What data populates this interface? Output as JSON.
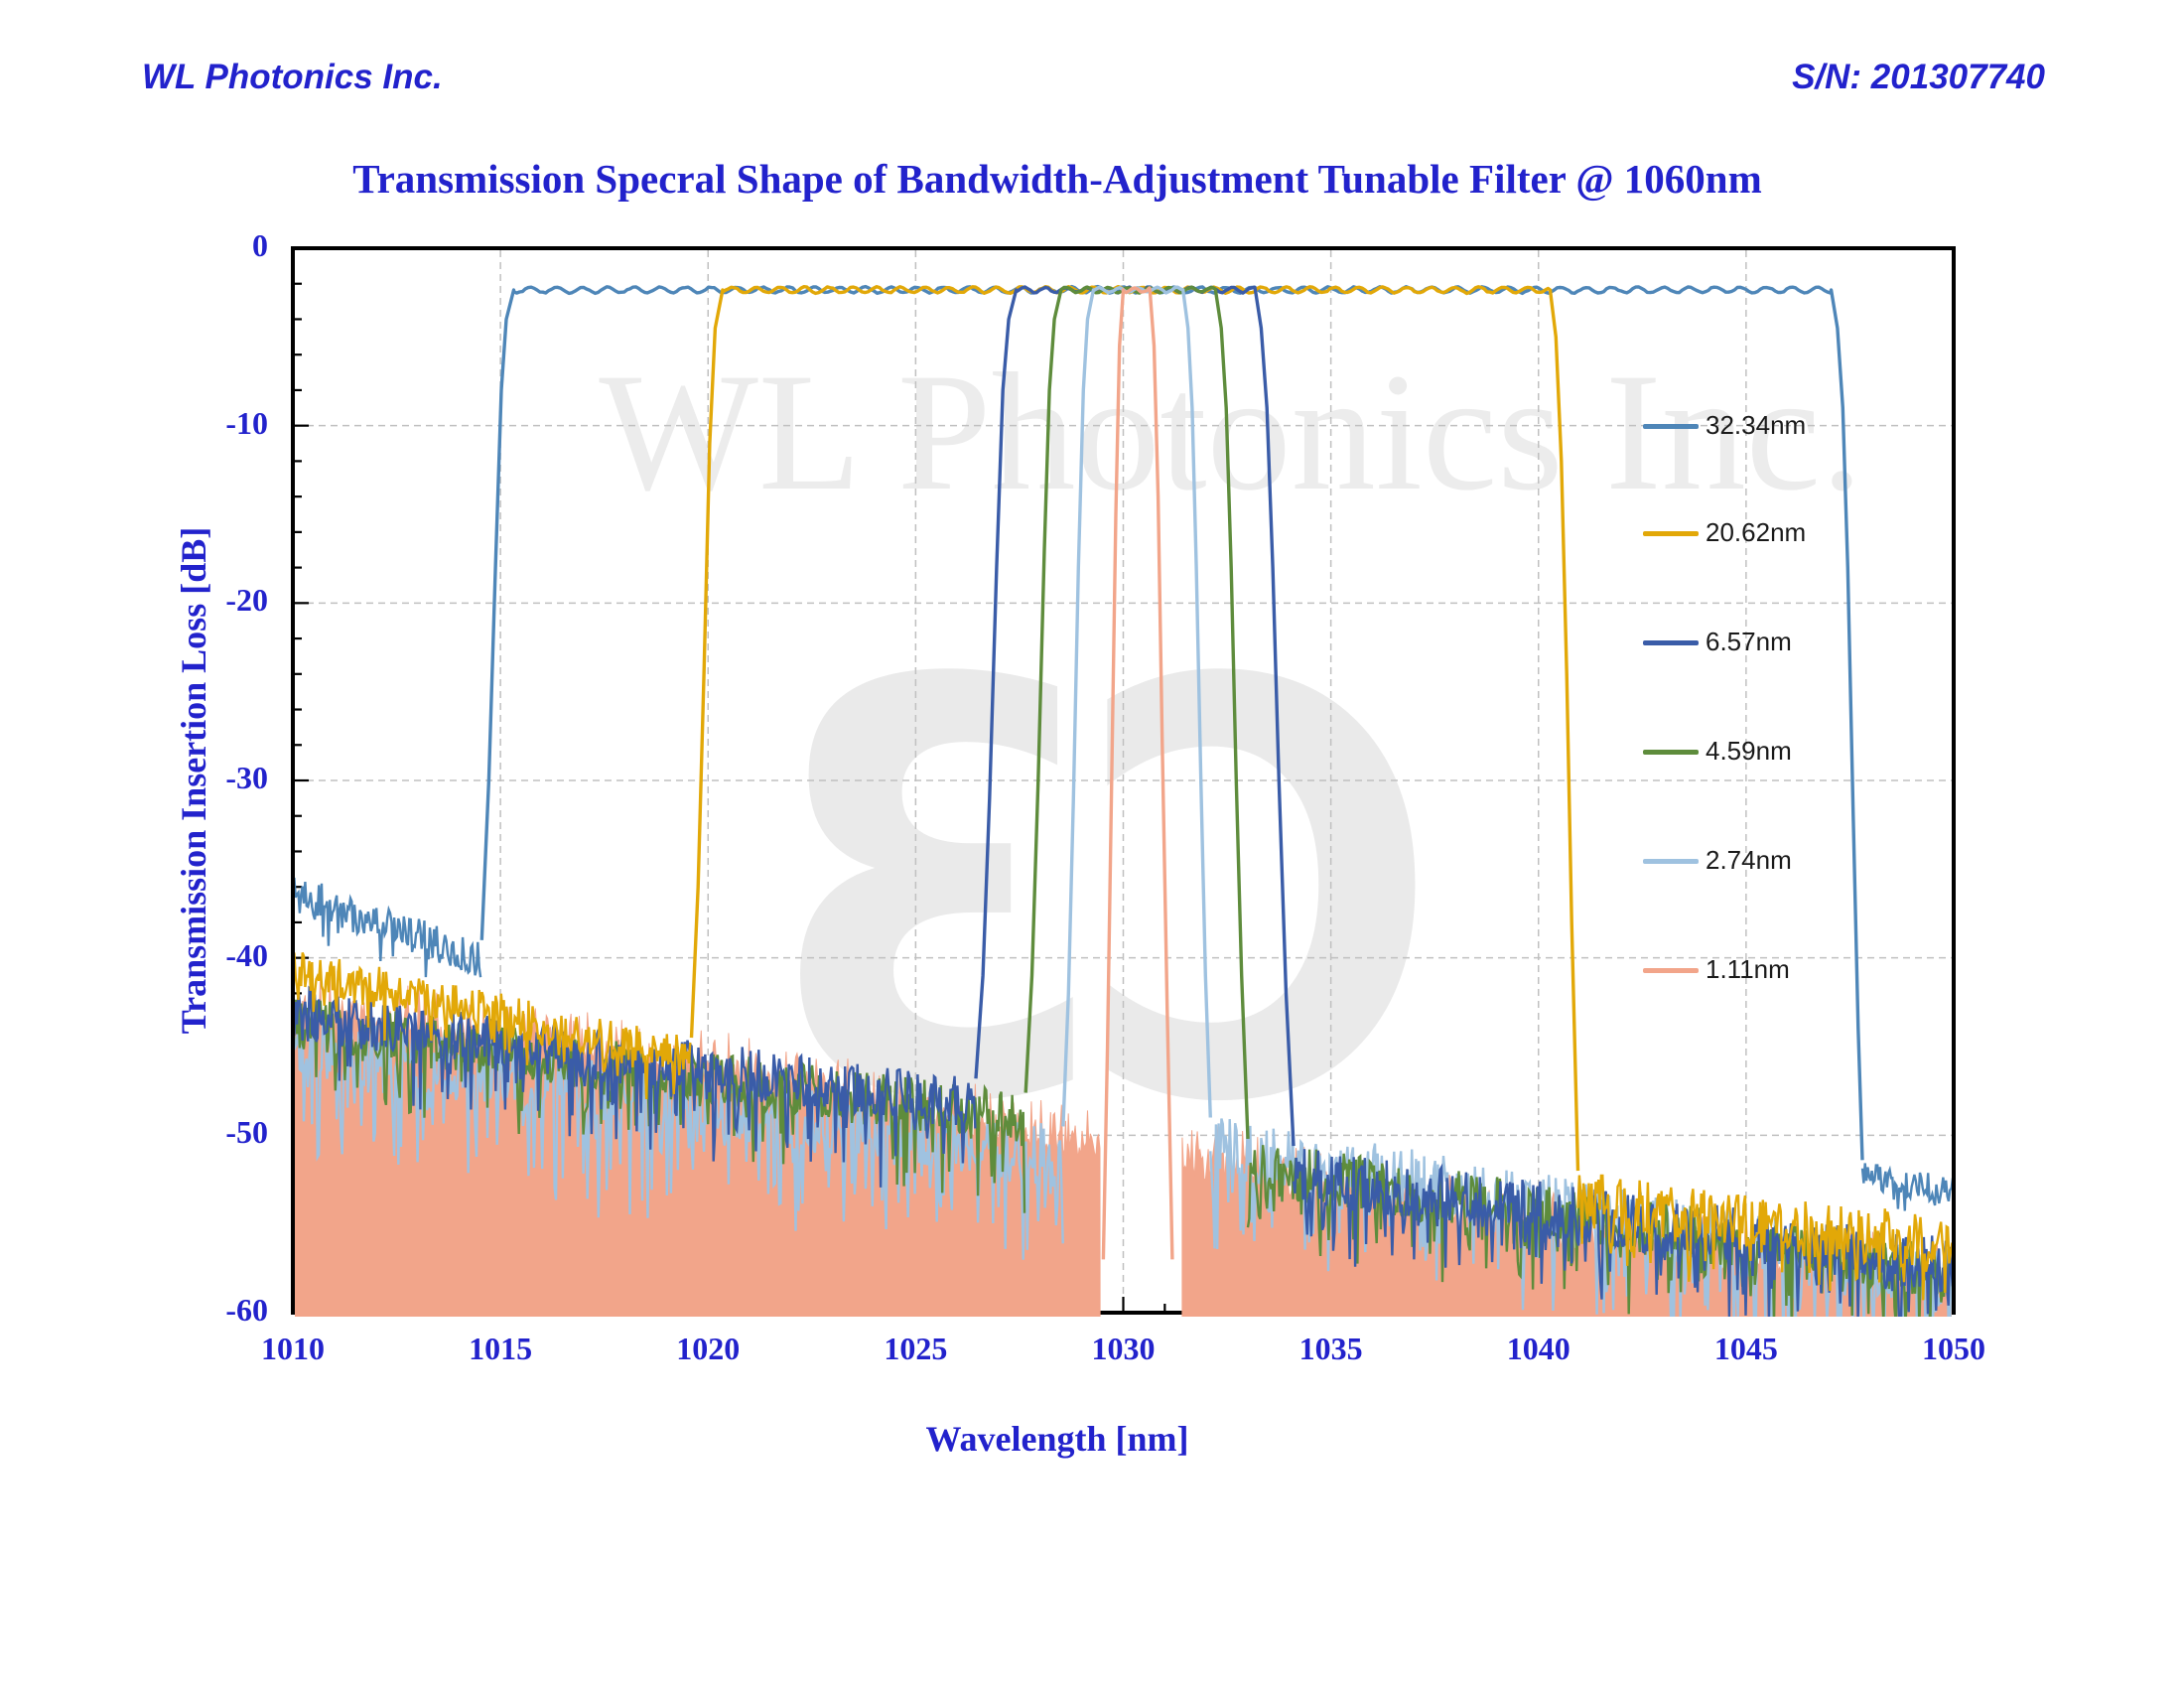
{
  "header": {
    "company": "WL Photonics Inc.",
    "serial": "S/N: 201307740",
    "text_color": "#2222CC"
  },
  "chart_data": {
    "type": "line",
    "title": "Transmission Specral Shape of Bandwidth-Adjustment Tunable Filter @ 1060nm",
    "xlabel": "Wavelength [nm]",
    "ylabel": "Transmission Insertion Loss [dB]",
    "xlim": [
      1010,
      1050
    ],
    "ylim": [
      -60,
      0
    ],
    "x_ticks": [
      "1010",
      "1015",
      "1020",
      "1025",
      "1030",
      "1035",
      "1040",
      "1045",
      "1050"
    ],
    "y_ticks": [
      "0",
      "-10",
      "-20",
      "-30",
      "-40",
      "-50",
      "-60"
    ],
    "x_minor_step_nm": 1,
    "y_minor_step_db": 2,
    "grid": "major-dashed-both",
    "grid_color": "#C0C0C0",
    "frame_color": "#000000",
    "legend_position": "inside-right",
    "watermark_text": "WL Photonics Inc.",
    "watermark_logo": "ƐƆ",
    "watermark_color": "#ECECEC",
    "center_wavelength_nm": 1030.3,
    "passband_top_db": -2.35,
    "series": [
      {
        "name": "32.34nm",
        "color": "#4E86B8",
        "bandwidth_nm": 32.34,
        "style": "line",
        "left_edge": [
          [
            1014.55,
            -39.0
          ],
          [
            1014.72,
            -30
          ],
          [
            1014.88,
            -18
          ],
          [
            1015.02,
            -8
          ],
          [
            1015.14,
            -4
          ],
          [
            1015.32,
            -2.35
          ]
        ],
        "right_edge": [
          [
            1047.05,
            -2.35
          ],
          [
            1047.2,
            -4.5
          ],
          [
            1047.33,
            -9
          ],
          [
            1047.45,
            -18
          ],
          [
            1047.58,
            -32
          ],
          [
            1047.7,
            -44
          ],
          [
            1047.8,
            -51.4
          ]
        ],
        "noise_left": {
          "x": [
            1010,
            1014.55
          ],
          "top": [
            -35.2,
            -39.0
          ],
          "amp": 2.2,
          "spike": 1.5,
          "spike_p": 0.1
        },
        "noise_right": {
          "x": [
            1047.8,
            1050
          ],
          "top": [
            -51.4,
            -52.4
          ],
          "amp": 1.6,
          "spike": 2.0,
          "spike_p": 0.12
        },
        "ripple": {
          "amp": 0.16,
          "period": 0.62
        }
      },
      {
        "name": "20.62nm",
        "color": "#E2A808",
        "bandwidth_nm": 20.62,
        "style": "line",
        "left_edge": [
          [
            1019.6,
            -44.5
          ],
          [
            1019.76,
            -36
          ],
          [
            1019.9,
            -24
          ],
          [
            1020.04,
            -11
          ],
          [
            1020.17,
            -4.5
          ],
          [
            1020.35,
            -2.35
          ]
        ],
        "right_edge": [
          [
            1040.28,
            -2.35
          ],
          [
            1040.42,
            -5
          ],
          [
            1040.55,
            -12
          ],
          [
            1040.68,
            -24
          ],
          [
            1040.8,
            -38
          ],
          [
            1040.95,
            -52.0
          ]
        ],
        "noise_left": {
          "x": [
            1010,
            1015,
            1019.6
          ],
          "top": [
            -39.4,
            -42.0,
            -44.5
          ],
          "amp": 2.4,
          "spike": 2.0,
          "spike_p": 0.15
        },
        "noise_right": {
          "x": [
            1040.95,
            1045,
            1050
          ],
          "top": [
            -52.0,
            -53.4,
            -54.4
          ],
          "amp": 3.2,
          "spike": 2.2,
          "spike_p": 0.2
        },
        "ripple": {
          "amp": 0.16,
          "period": 0.58
        }
      },
      {
        "name": "6.57nm",
        "color": "#3A5CA8",
        "bandwidth_nm": 6.57,
        "style": "line",
        "left_edge": [
          [
            1026.45,
            -46.8
          ],
          [
            1026.62,
            -41
          ],
          [
            1026.78,
            -31
          ],
          [
            1026.95,
            -18
          ],
          [
            1027.1,
            -8
          ],
          [
            1027.24,
            -4
          ],
          [
            1027.42,
            -2.35
          ]
        ],
        "right_edge": [
          [
            1033.18,
            -2.35
          ],
          [
            1033.32,
            -4.5
          ],
          [
            1033.46,
            -9
          ],
          [
            1033.6,
            -18
          ],
          [
            1033.75,
            -30
          ],
          [
            1033.92,
            -42
          ],
          [
            1034.1,
            -50.6
          ]
        ],
        "noise_left": {
          "x": [
            1010,
            1026.45
          ],
          "top": [
            -41.6,
            -46.8
          ],
          "amp": 3.0,
          "spike": 4.0,
          "spike_p": 0.15
        },
        "noise_right": {
          "x": [
            1034.1,
            1050
          ],
          "top": [
            -50.6,
            -55.8
          ],
          "amp": 3.2,
          "spike": 3.5,
          "spike_p": 0.18
        },
        "ripple": {
          "amp": 0.14,
          "period": 0.5
        }
      },
      {
        "name": "4.59nm",
        "color": "#5E8C3C",
        "bandwidth_nm": 4.59,
        "style": "line",
        "left_edge": [
          [
            1027.65,
            -47.6
          ],
          [
            1027.8,
            -41
          ],
          [
            1027.95,
            -30
          ],
          [
            1028.1,
            -17
          ],
          [
            1028.22,
            -8
          ],
          [
            1028.34,
            -4
          ],
          [
            1028.5,
            -2.35
          ]
        ],
        "right_edge": [
          [
            1032.22,
            -2.35
          ],
          [
            1032.36,
            -4.5
          ],
          [
            1032.48,
            -9
          ],
          [
            1032.6,
            -18
          ],
          [
            1032.72,
            -30
          ],
          [
            1032.85,
            -41
          ],
          [
            1033.0,
            -50.2
          ]
        ],
        "noise_left": {
          "x": [
            1010,
            1027.65
          ],
          "top": [
            -42.2,
            -47.6
          ],
          "amp": 3.0,
          "spike": 4.0,
          "spike_p": 0.15
        },
        "noise_right": {
          "x": [
            1033.0,
            1050
          ],
          "top": [
            -50.2,
            -56.2
          ],
          "amp": 3.2,
          "spike": 3.5,
          "spike_p": 0.18
        },
        "ripple": {
          "amp": 0.14,
          "period": 0.5
        }
      },
      {
        "name": "2.74nm",
        "color": "#9FC2E0",
        "bandwidth_nm": 2.74,
        "style": "line",
        "left_edge": [
          [
            1028.55,
            -49.5
          ],
          [
            1028.68,
            -42
          ],
          [
            1028.8,
            -31
          ],
          [
            1028.92,
            -18
          ],
          [
            1029.04,
            -8
          ],
          [
            1029.14,
            -4
          ],
          [
            1029.28,
            -2.35
          ]
        ],
        "right_edge": [
          [
            1031.44,
            -2.35
          ],
          [
            1031.56,
            -4.5
          ],
          [
            1031.66,
            -9
          ],
          [
            1031.76,
            -18
          ],
          [
            1031.87,
            -30
          ],
          [
            1031.98,
            -41
          ],
          [
            1032.1,
            -49.0
          ]
        ],
        "noise_left": {
          "x": [
            1010,
            1028.55
          ],
          "top": [
            -43.0,
            -49.5
          ],
          "amp": 3.6,
          "spike": 5.5,
          "spike_p": 0.25
        },
        "noise_right": {
          "x": [
            1032.1,
            1050
          ],
          "top": [
            -48.7,
            -56.4
          ],
          "amp": 3.6,
          "spike": 5.0,
          "spike_p": 0.25
        },
        "ripple": {
          "amp": 0.14,
          "period": 0.46
        }
      },
      {
        "name": "1.11nm",
        "color": "#F2A58A",
        "bandwidth_nm": 1.11,
        "style": "filled-noise",
        "left_edge": [
          [
            1029.52,
            -57.0
          ],
          [
            1029.62,
            -45
          ],
          [
            1029.72,
            -30
          ],
          [
            1029.82,
            -15
          ],
          [
            1029.91,
            -5.5
          ],
          [
            1030.0,
            -2.35
          ]
        ],
        "right_edge": [
          [
            1030.64,
            -2.35
          ],
          [
            1030.74,
            -5.5
          ],
          [
            1030.84,
            -14
          ],
          [
            1030.94,
            -28
          ],
          [
            1031.06,
            -43
          ],
          [
            1031.18,
            -57.0
          ]
        ],
        "noise_left": {
          "x": [
            1010,
            1020,
            1029.44
          ],
          "top": [
            -41.9,
            -45.3,
            -49.8
          ],
          "amp": 1.8,
          "fill": true
        },
        "noise_right": {
          "x": [
            1031.42,
            1040,
            1050
          ],
          "top": [
            -50.3,
            -54.4,
            -57.3
          ],
          "amp": 2.0,
          "fill": true
        },
        "ripple": {
          "amp": 0.12,
          "period": 0.42
        }
      }
    ]
  }
}
